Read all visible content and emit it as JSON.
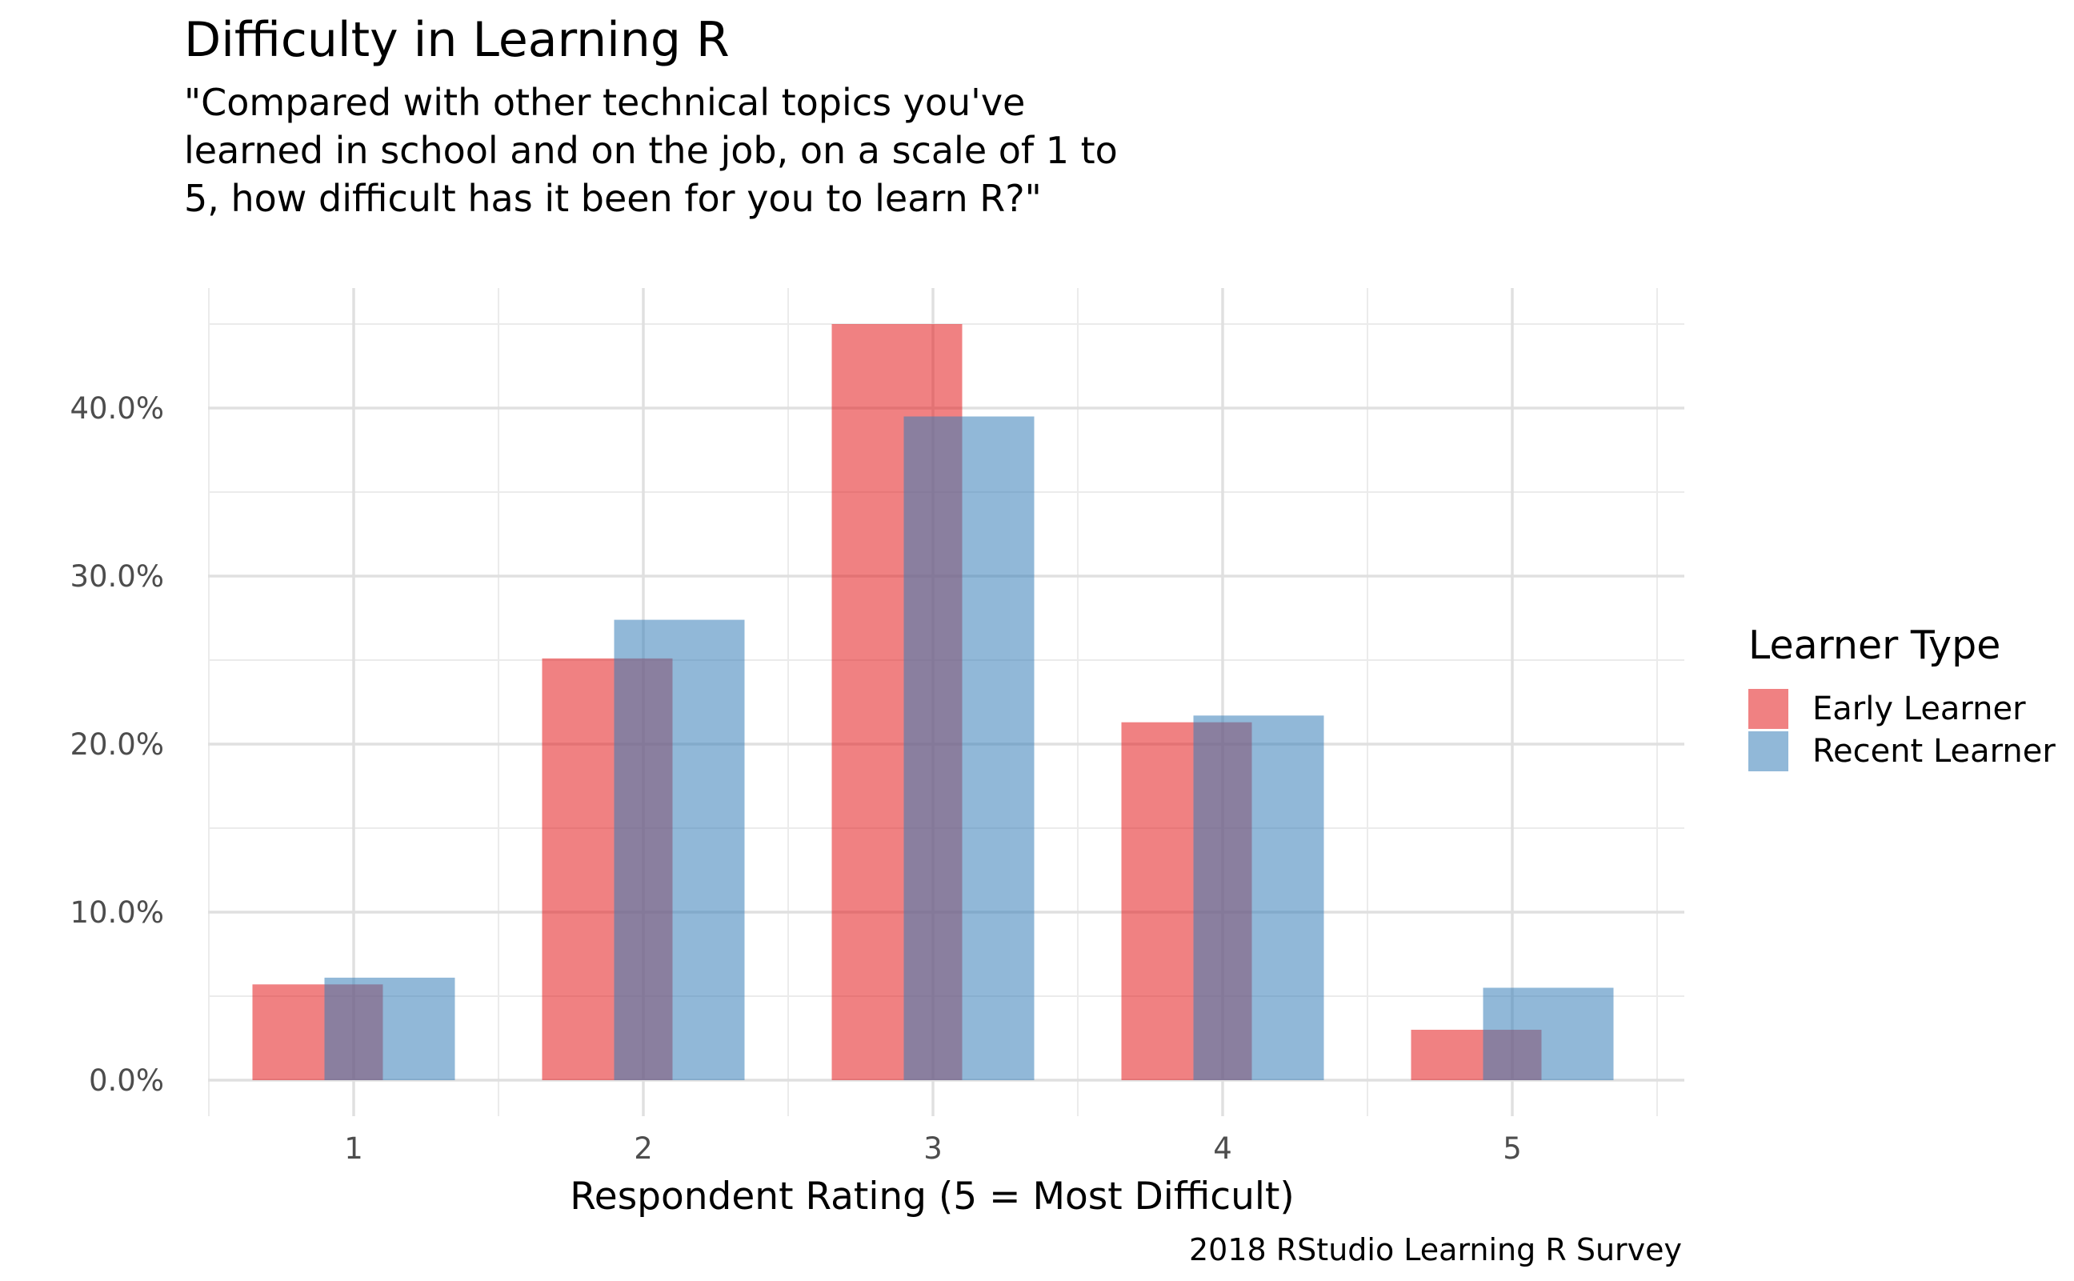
{
  "chart_data": {
    "type": "bar",
    "title": "Difficulty in Learning R",
    "subtitle": "\"Compared with other technical topics you've learned in school and on the job, on a scale of 1 to 5, how difficult has it been for you to learn R?\"",
    "caption": "2018 RStudio Learning R Survey",
    "xlabel": "Respondent Rating (5 = Most Difficult)",
    "ylabel": "",
    "categories": [
      "1",
      "2",
      "3",
      "4",
      "5"
    ],
    "yticks": [
      0,
      10,
      20,
      30,
      40
    ],
    "ytick_labels": [
      "0.0%",
      "10.0%",
      "20.0%",
      "30.0%",
      "40.0%"
    ],
    "ylim": [
      -2.2,
      47
    ],
    "legend": {
      "title": "Learner Type",
      "position": "right"
    },
    "series": [
      {
        "name": "Early Learner",
        "color": "#E41A1C",
        "values": [
          5.7,
          25.1,
          45.0,
          21.3,
          3.0
        ]
      },
      {
        "name": "Recent Learner",
        "color": "#377EB8",
        "values": [
          6.1,
          27.4,
          39.5,
          21.7,
          5.5
        ]
      }
    ]
  }
}
